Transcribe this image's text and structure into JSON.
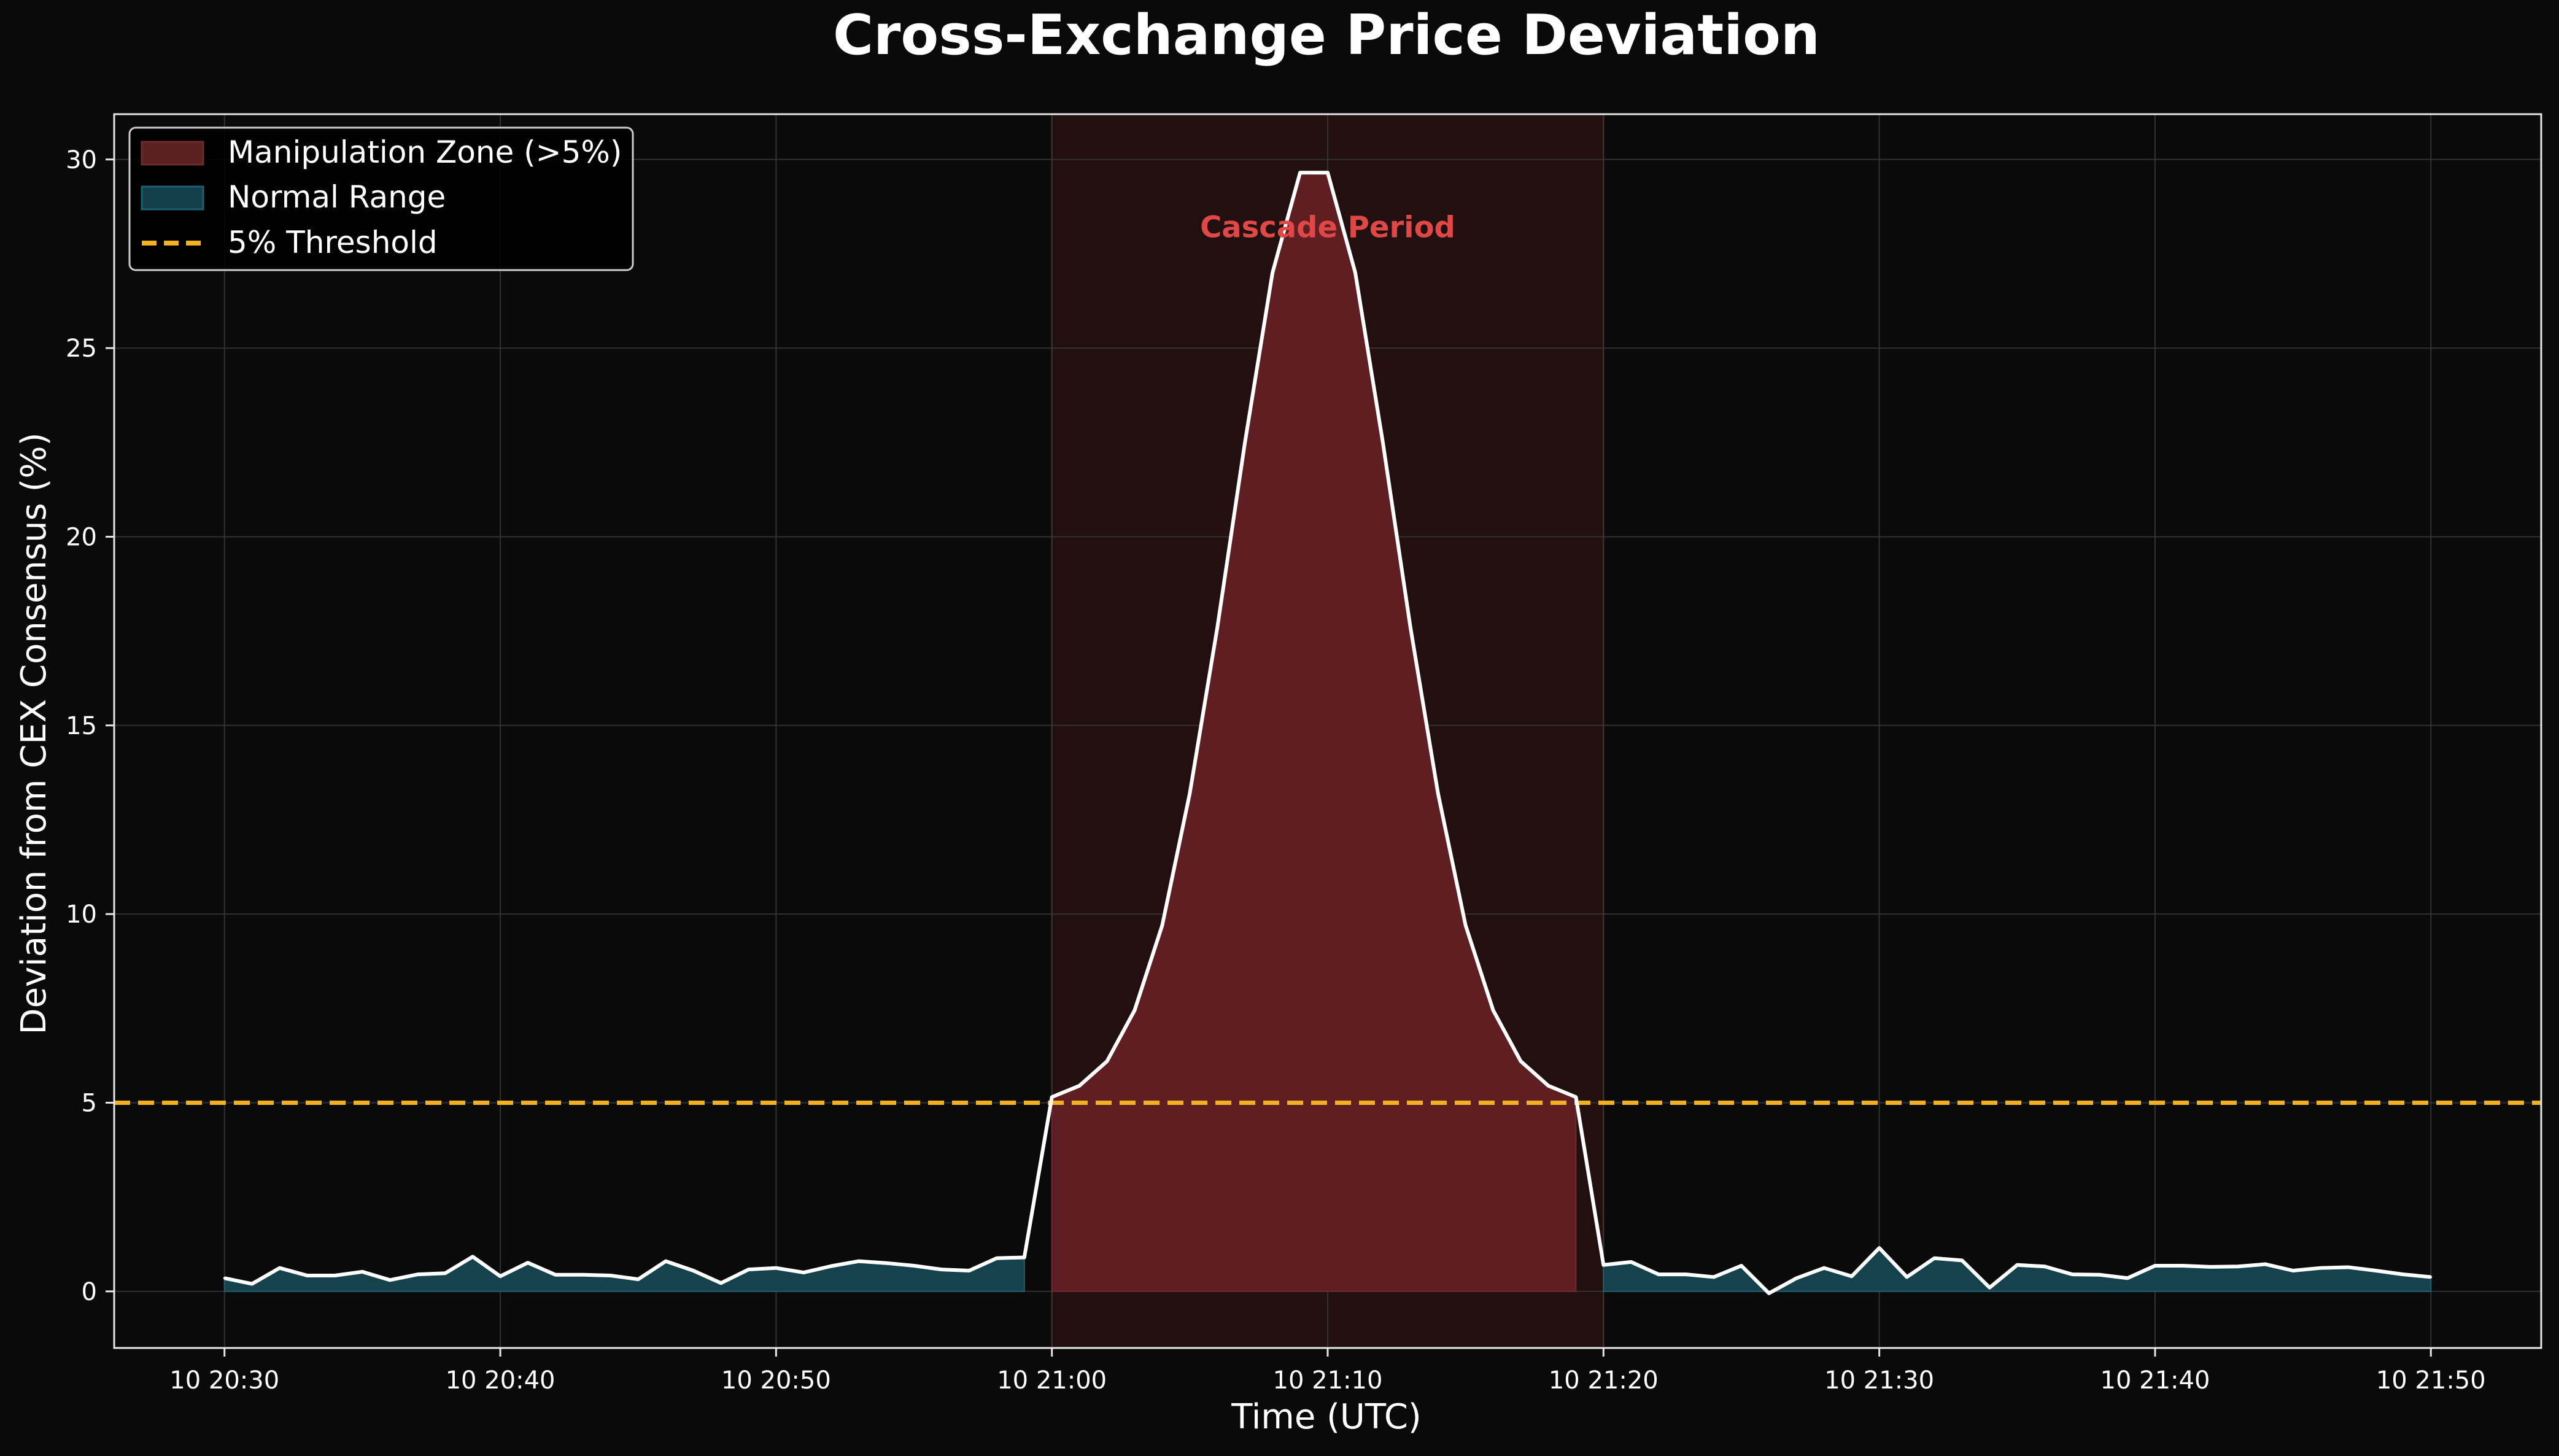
{
  "chart_data": {
    "type": "area",
    "title": "Cross-Exchange Price Deviation",
    "xlabel": "Time (UTC)",
    "ylabel": "Deviation from CEX Consensus (%)",
    "x_start": "10 20:30",
    "x_step_minutes": 1,
    "xlim": [
      "10 20:26",
      "10 21:54"
    ],
    "ylim": [
      -1.5,
      31.2
    ],
    "x_ticks": [
      "10 20:30",
      "10 20:40",
      "10 20:50",
      "10 21:00",
      "10 21:10",
      "10 21:20",
      "10 21:30",
      "10 21:40",
      "10 21:50"
    ],
    "y_ticks": [
      0,
      5,
      10,
      15,
      20,
      25,
      30
    ],
    "grid": true,
    "legend_position": "upper-left",
    "threshold": 5,
    "highlight_span": [
      "10 21:00",
      "10 21:20"
    ],
    "annotation": {
      "text": "Cascade Period",
      "x": "10 21:10",
      "y": 28.2,
      "color": "#e04848"
    },
    "series": [
      {
        "name": "deviation",
        "values": [
          0.35,
          0.2,
          0.62,
          0.42,
          0.42,
          0.52,
          0.3,
          0.45,
          0.48,
          0.92,
          0.4,
          0.76,
          0.44,
          0.44,
          0.42,
          0.32,
          0.8,
          0.55,
          0.22,
          0.58,
          0.62,
          0.5,
          0.67,
          0.8,
          0.75,
          0.68,
          0.58,
          0.55,
          0.88,
          0.9,
          5.15,
          5.45,
          6.1,
          7.45,
          9.7,
          13.2,
          17.6,
          22.5,
          27.0,
          29.65,
          29.65,
          27.0,
          22.5,
          17.6,
          13.2,
          9.7,
          7.45,
          6.1,
          5.45,
          5.15,
          0.7,
          0.78,
          0.45,
          0.45,
          0.38,
          0.68,
          -0.05,
          0.35,
          0.62,
          0.4,
          1.15,
          0.38,
          0.88,
          0.82,
          0.1,
          0.7,
          0.66,
          0.45,
          0.44,
          0.35,
          0.68,
          0.68,
          0.65,
          0.66,
          0.72,
          0.55,
          0.62,
          0.64,
          0.55,
          0.45,
          0.38
        ]
      }
    ],
    "legend": [
      {
        "label": "Manipulation Zone (>5%)",
        "kind": "patch",
        "color": "#5a2022",
        "border": "#6e2a2c"
      },
      {
        "label": "Normal Range",
        "kind": "patch",
        "color": "#123f4a",
        "border": "#1f6070"
      },
      {
        "label": "5% Threshold",
        "kind": "dashed",
        "color": "#f2b024"
      }
    ],
    "colors": {
      "background": "#0a0a0a",
      "line": "#ffffff",
      "manipulation_fill": "#5f1f22",
      "normal_fill": "#15424c",
      "span_fill": "#21100f",
      "threshold": "#f2b024",
      "grid": "#3a3a3a"
    }
  }
}
